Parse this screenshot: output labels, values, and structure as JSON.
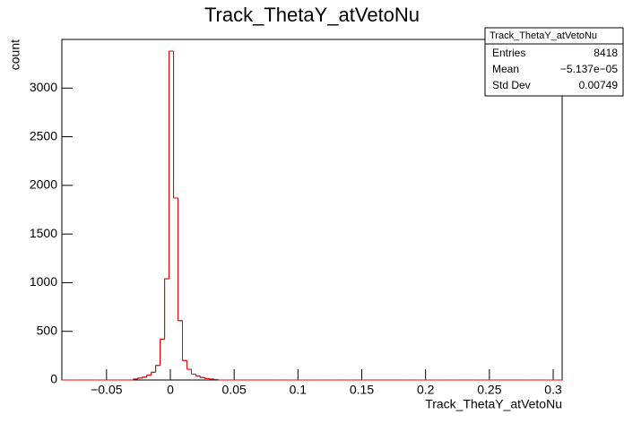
{
  "chart_data": {
    "type": "histogram",
    "title": "Track_ThetaY_atVetoNu",
    "x_label": "Track_ThetaY_atVetoNu",
    "y_label": "count",
    "bins": [
      -0.085,
      -0.0815,
      -0.078,
      -0.0745,
      -0.071,
      -0.0675,
      -0.064,
      -0.0605,
      -0.057,
      -0.0535,
      -0.05,
      -0.0465,
      -0.043,
      -0.0395,
      -0.036,
      -0.0325,
      -0.029,
      -0.0255,
      -0.022,
      -0.0185,
      -0.015,
      -0.0115,
      -0.008,
      -0.0045,
      -0.001,
      0.0025,
      0.006,
      0.0095,
      0.013,
      0.0165,
      0.02,
      0.0235,
      0.027,
      0.0305,
      0.034,
      0.0375,
      0.041,
      0.0445,
      0.048,
      0.0515,
      0.055,
      0.0585,
      0.062,
      0.0655,
      0.069,
      0.0725,
      0.076,
      0.0795,
      0.083,
      0.0865,
      0.09,
      0.0935,
      0.097,
      0.1005,
      0.104,
      0.1075,
      0.111,
      0.1145,
      0.118,
      0.1215,
      0.125,
      0.1285,
      0.132,
      0.1355,
      0.139,
      0.1425,
      0.146,
      0.1495,
      0.153,
      0.1565,
      0.16,
      0.1635,
      0.167,
      0.1705,
      0.174,
      0.1775,
      0.181,
      0.1845,
      0.188,
      0.1915,
      0.195,
      0.1985,
      0.202,
      0.2055,
      0.209,
      0.2125,
      0.216,
      0.2195,
      0.223,
      0.2265,
      0.23,
      0.2335,
      0.237,
      0.2405,
      0.244,
      0.2475,
      0.251,
      0.2545,
      0.258,
      0.2615,
      0.265,
      0.2685,
      0.272,
      0.2755,
      0.279,
      0.2825,
      0.286,
      0.2895,
      0.293,
      0.2965,
      0.3,
      0.3035,
      0.307
    ],
    "series": [
      {
        "color": "#000000",
        "values": [
          0,
          0,
          0,
          0,
          0,
          0,
          0,
          0,
          0,
          0,
          0,
          0,
          0,
          0,
          0,
          0,
          10,
          20,
          30,
          50,
          80,
          150,
          420,
          1040,
          3380,
          1870,
          610,
          200,
          110,
          60,
          40,
          25,
          15,
          10,
          5,
          0,
          0,
          0,
          0,
          0,
          0,
          0,
          0,
          0,
          0,
          0,
          0,
          0,
          0,
          0,
          0,
          0,
          0,
          0,
          0,
          0,
          0,
          0,
          0,
          0,
          0,
          0,
          0,
          0,
          0,
          0,
          0,
          0,
          0,
          0,
          0,
          0,
          0,
          0,
          0,
          0,
          0,
          0,
          0,
          0,
          0,
          0,
          0,
          0,
          0,
          0,
          0,
          0,
          0,
          0,
          0,
          0,
          0,
          0,
          0,
          0,
          0,
          0,
          0,
          0,
          0,
          0,
          0,
          0,
          0,
          0,
          0,
          0,
          0,
          0,
          0,
          0
        ]
      },
      {
        "color": "#ff0000",
        "values": [
          0,
          0,
          0,
          0,
          0,
          0,
          0,
          0,
          0,
          0,
          0,
          0,
          0,
          0,
          0,
          0,
          10,
          20,
          30,
          50,
          80,
          150,
          420,
          1040,
          3380,
          1870,
          610,
          200,
          110,
          60,
          40,
          25,
          15,
          10,
          5,
          0,
          0,
          0,
          0,
          0,
          0,
          0,
          0,
          0,
          0,
          0,
          0,
          0,
          0,
          0,
          0,
          0,
          0,
          0,
          0,
          0,
          0,
          0,
          0,
          0,
          0,
          0,
          0,
          0,
          0,
          0,
          0,
          0,
          0,
          0,
          0,
          0,
          0,
          0,
          0,
          0,
          0,
          0,
          0,
          0,
          0,
          0,
          0,
          0,
          0,
          0,
          0,
          0,
          0,
          0,
          0,
          0,
          0,
          0,
          0,
          0,
          0,
          0,
          0,
          0,
          0,
          0,
          0,
          0,
          0,
          0,
          0,
          0,
          0,
          0,
          0,
          0
        ]
      }
    ],
    "xlim": [
      -0.085,
      0.307
    ],
    "ylim": [
      0,
      3500
    ],
    "xticks": [
      {
        "value": -0.05,
        "label": "−0.05"
      },
      0,
      0.05,
      0.1,
      0.15,
      0.2,
      0.25,
      0.3
    ],
    "yticks": [
      0,
      500,
      1000,
      1500,
      2000,
      2500,
      3000
    ],
    "stats": {
      "title": "Track_ThetaY_atVetoNu",
      "rows": [
        {
          "label": "Entries",
          "value": "8418"
        },
        {
          "label": "Mean",
          "value": "−5.137e−05"
        },
        {
          "label": "Std Dev",
          "value": "0.00749"
        }
      ]
    }
  }
}
